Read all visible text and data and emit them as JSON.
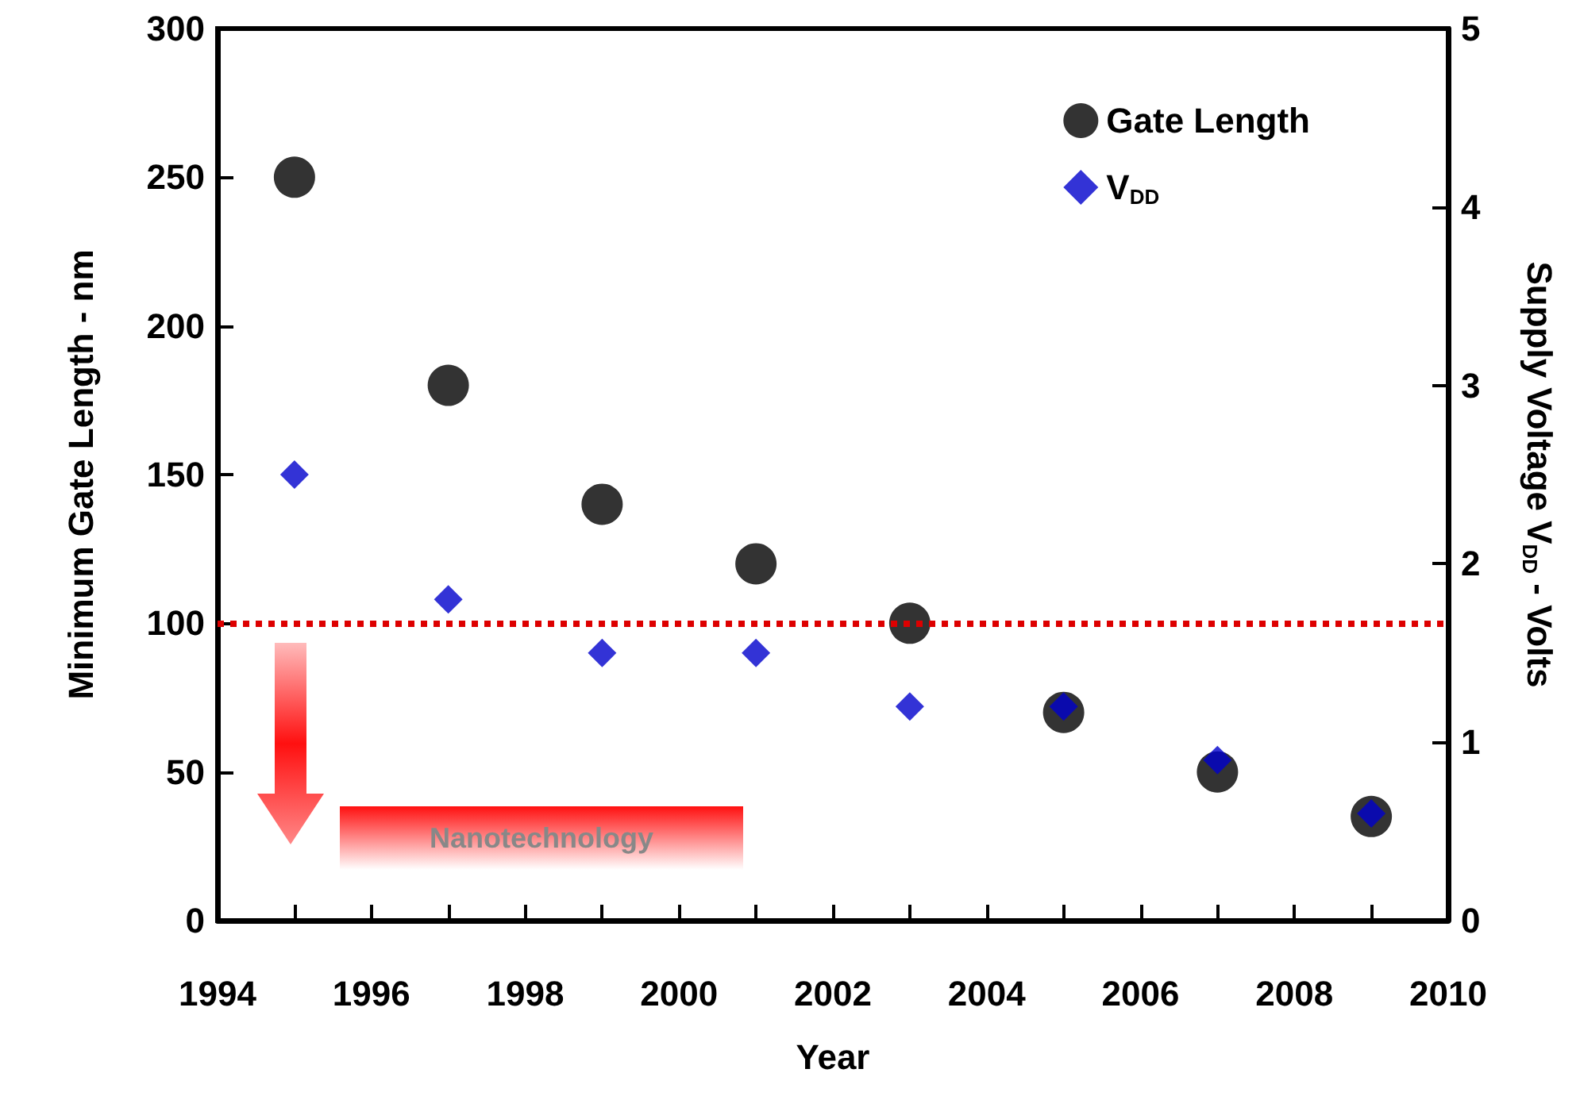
{
  "chart_data": {
    "type": "scatter",
    "xlabel": "Year",
    "ylabel": "Minimum Gate Length - nm",
    "y2label": "Supply Voltage V$_{DD}$ - Volts",
    "x": [
      1995,
      1997,
      1999,
      2001,
      2003,
      2005,
      2007,
      2009
    ],
    "series": [
      {
        "name": "Gate Length",
        "color": "#000000",
        "marker": "circle",
        "values": [
          250,
          180,
          140,
          120,
          100,
          70,
          50,
          35
        ]
      },
      {
        "name": "V$_{DD}$",
        "color": "#0000cc",
        "marker": "diamond",
        "axis": "y2",
        "values": [
          2.5,
          1.8,
          1.5,
          1.5,
          1.2,
          1.2,
          0.9,
          0.6
        ]
      }
    ],
    "xlim": [
      1994,
      2010
    ],
    "xticks": [
      1994,
      {
        "value": 1995,
        "label": null
      },
      1996,
      {
        "value": 1997,
        "label": null
      },
      1998,
      {
        "value": 1999,
        "label": null
      },
      2000,
      {
        "value": 2001,
        "label": null
      },
      2002,
      {
        "value": 2003,
        "label": null
      },
      2004,
      {
        "value": 2005,
        "label": null
      },
      2006,
      {
        "value": 2007,
        "label": null
      },
      2008,
      {
        "value": 2009,
        "label": null
      },
      2010
    ],
    "ylim": [
      0,
      300
    ],
    "yticks": [
      0,
      50,
      100,
      150,
      200,
      250,
      300
    ],
    "y2lim": [
      0,
      5
    ],
    "y2ticks": [
      0,
      1,
      2,
      3,
      4,
      5
    ],
    "ref_lines": [
      {
        "axis": "y",
        "value": 100,
        "color": "#dd0000",
        "line_style": "dotted"
      }
    ],
    "annotations": [
      "Nanotechnology"
    ],
    "grid": false,
    "legend": "top right"
  }
}
